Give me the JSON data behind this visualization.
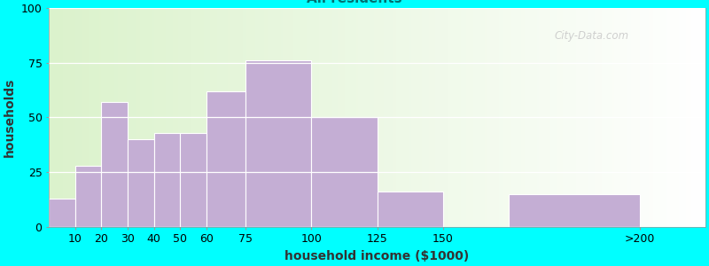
{
  "xlabel": "household income ($1000)",
  "ylabel": "households",
  "background_color": "#00FFFF",
  "bar_color": "#c4aed4",
  "bar_edgecolor": "#ffffff",
  "values": [
    13,
    28,
    57,
    40,
    43,
    43,
    62,
    76,
    50,
    16,
    15
  ],
  "bar_lefts": [
    0,
    10,
    20,
    30,
    40,
    50,
    60,
    75,
    100,
    125,
    175
  ],
  "bar_widths": [
    10,
    10,
    10,
    10,
    10,
    10,
    15,
    25,
    25,
    25,
    50
  ],
  "xtick_positions": [
    10,
    20,
    30,
    40,
    50,
    60,
    75,
    100,
    125,
    150,
    225
  ],
  "xtick_labels": [
    "10",
    "20",
    "30",
    "40",
    "50",
    "60",
    "75",
    "100",
    "125",
    "150",
    ">200"
  ],
  "xlim": [
    0,
    250
  ],
  "ylim": [
    0,
    100
  ],
  "yticks": [
    0,
    25,
    50,
    75,
    100
  ],
  "title_fontsize": 13,
  "subtitle_fontsize": 11,
  "axis_label_fontsize": 10,
  "tick_fontsize": 9,
  "watermark_text": "City-Data.com",
  "watermark_color": "#c8c8c8",
  "subtitle_color": "#007070",
  "title_color": "#111111",
  "axis_label_color": "#333333"
}
